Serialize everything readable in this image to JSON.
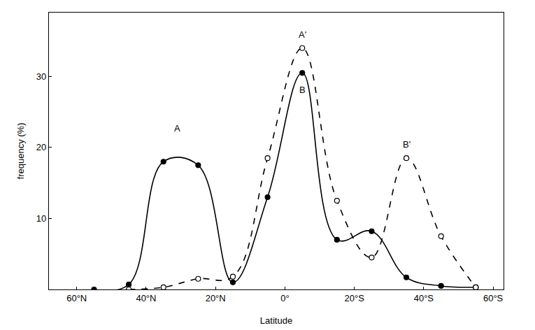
{
  "chart_data": {
    "type": "line",
    "x_label": "Latitude",
    "y_label": "frequency (%)",
    "x": [
      55,
      45,
      35,
      25,
      15,
      5,
      -5,
      -15,
      -25,
      -35,
      -45,
      -55
    ],
    "series": [
      {
        "color": "#000000",
        "marker": "filled",
        "line_style": "solid",
        "values": [
          0,
          0.7,
          18,
          17.5,
          1,
          13,
          30.5,
          7,
          8.2,
          1.7,
          0.5,
          0.3
        ]
      },
      {
        "color": "#000000",
        "marker": "open",
        "line_style": "dashed",
        "values": [
          null,
          0,
          0.3,
          1.5,
          1.8,
          18.5,
          34,
          12.5,
          4.5,
          18.5,
          7.5,
          0.3
        ]
      }
    ],
    "xlim": [
      68,
      -63
    ],
    "xticks": [
      {
        "value": 60,
        "label": "60°N"
      },
      {
        "value": 40,
        "label": "40°N"
      },
      {
        "value": 20,
        "label": "20°N"
      },
      {
        "value": 0,
        "label": "0°"
      },
      {
        "value": -20,
        "label": "20°S"
      },
      {
        "value": -40,
        "label": "40°S"
      },
      {
        "value": -60,
        "label": "60°S"
      }
    ],
    "ylim": [
      0,
      39
    ],
    "yticks": [
      10,
      20,
      30
    ],
    "grid": false,
    "annotations": [
      {
        "text": "A",
        "x": 31,
        "y": 21.8
      },
      {
        "text": "A'",
        "x": -5,
        "y": 35
      },
      {
        "text": "B",
        "x": -5,
        "y": 27.2
      },
      {
        "text": "B'",
        "x": -35,
        "y": 19.5
      }
    ]
  }
}
